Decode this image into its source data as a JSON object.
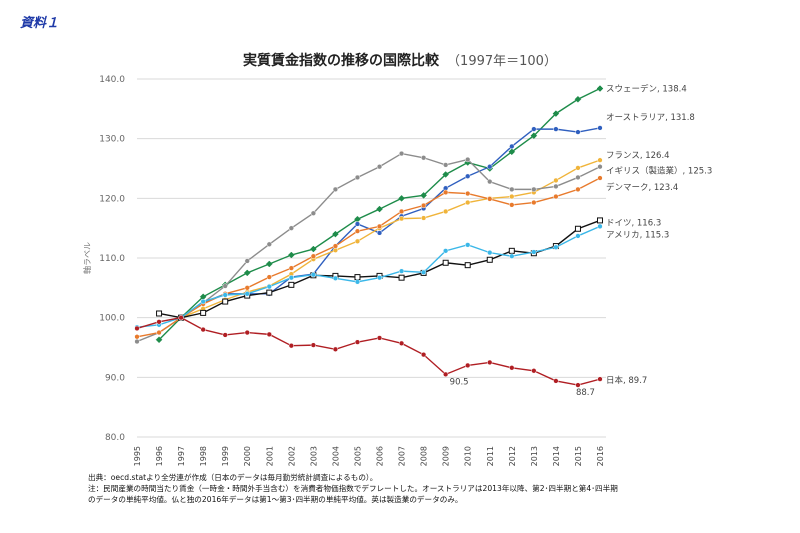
{
  "document_label": "資料１",
  "chart_data": {
    "type": "line",
    "title": "実質賃金指数の推移の国際比較",
    "subtitle": "（1997年＝100）",
    "ylabel": "軸ラベル",
    "xlabel": "",
    "ylim": [
      80,
      140
    ],
    "yticks": [
      "80.0",
      "90.0",
      "100.0",
      "110.0",
      "120.0",
      "130.0",
      "140.0"
    ],
    "ytick_values": [
      80,
      90,
      100,
      110,
      120,
      130,
      140
    ],
    "categories": [
      "1995",
      "1996",
      "1997",
      "1998",
      "1999",
      "2000",
      "2001",
      "2002",
      "2003",
      "2004",
      "2005",
      "2006",
      "2007",
      "2008",
      "2009",
      "2010",
      "2011",
      "2012",
      "2013",
      "2014",
      "2015",
      "2016"
    ],
    "grid": true,
    "legend": "end-of-line labels",
    "series": [
      {
        "name": "スウェーデン",
        "end_label": "スウェーデン, 138.4",
        "color": "#1e8c4a",
        "marker": "diamond",
        "values": [
          null,
          96.3,
          100,
          103.5,
          105.5,
          107.5,
          109,
          110.5,
          111.5,
          114,
          116.5,
          118.2,
          120,
          120.5,
          124,
          126,
          125,
          127.8,
          130.5,
          134.2,
          136.6,
          138.4
        ]
      },
      {
        "name": "オーストラリア",
        "end_label": "オーストラリア, 131.8",
        "color": "#2f5fbf",
        "marker": "circle",
        "values": [
          null,
          null,
          100,
          102.5,
          104,
          104,
          104,
          106.8,
          107.3,
          112,
          115.7,
          114.2,
          117,
          118.3,
          121.7,
          123.7,
          125.3,
          128.7,
          131.6,
          131.6,
          131.1,
          131.8
        ]
      },
      {
        "name": "フランス",
        "end_label": "フランス, 126.4",
        "color": "#f0b43a",
        "marker": "circle",
        "values": [
          null,
          null,
          100,
          101.5,
          103,
          104.3,
          105.3,
          107.3,
          109.8,
          111.3,
          112.8,
          115,
          116.6,
          116.7,
          117.8,
          119.3,
          120,
          120.3,
          121,
          123,
          125.1,
          126.4
        ]
      },
      {
        "name": "イギリス（製造業）",
        "end_label": "イギリス（製造業）, 125.3",
        "color": "#8c8c8c",
        "marker": "circle",
        "values": [
          96,
          97.5,
          100,
          102.5,
          105.3,
          109.5,
          112.3,
          115,
          117.5,
          121.5,
          123.5,
          125.3,
          127.5,
          126.8,
          125.6,
          126.5,
          122.8,
          121.5,
          121.5,
          122,
          123.5,
          125.3
        ]
      },
      {
        "name": "デンマーク",
        "end_label": "デンマーク, 123.4",
        "color": "#e87a2c",
        "marker": "circle",
        "values": [
          96.8,
          97.5,
          100,
          102.3,
          104,
          105,
          106.8,
          108.3,
          110.3,
          112,
          114.5,
          115.3,
          117.8,
          118.8,
          121,
          120.8,
          119.9,
          118.9,
          119.3,
          120.3,
          121.5,
          123.4
        ]
      },
      {
        "name": "ドイツ",
        "end_label": "ドイツ, 116.3",
        "color": "#111111",
        "marker": "square",
        "values": [
          null,
          100.7,
          100,
          100.8,
          102.7,
          103.7,
          104.2,
          105.5,
          107.1,
          107,
          106.8,
          107,
          106.7,
          107.5,
          109.2,
          108.8,
          109.7,
          111.2,
          110.8,
          112,
          114.9,
          116.3
        ]
      },
      {
        "name": "アメリカ",
        "end_label": "アメリカ, 115.3",
        "color": "#3ab7e8",
        "marker": "circle",
        "values": [
          98.4,
          98.8,
          100,
          102.7,
          103.8,
          104,
          105.2,
          106.7,
          107.2,
          106.6,
          106,
          106.7,
          107.8,
          107.6,
          111.2,
          112.2,
          110.9,
          110.3,
          111,
          111.8,
          113.7,
          115.3
        ]
      },
      {
        "name": "日本",
        "end_label": "日本, 89.7",
        "color": "#b01e23",
        "marker": "circle",
        "values": [
          98.2,
          99.3,
          100,
          98,
          97.1,
          97.5,
          97.2,
          95.3,
          95.4,
          94.7,
          95.9,
          96.6,
          95.7,
          93.8,
          90.5,
          92,
          92.5,
          91.6,
          91.1,
          89.4,
          88.7,
          89.7
        ]
      }
    ],
    "annotations": [
      {
        "text": "90.5",
        "x": "2009",
        "y": 90.5
      },
      {
        "text": "88.7",
        "x": "2015",
        "y": 88.7
      }
    ]
  },
  "notes": [
    "出典：oecd.statより全労連が作成（日本のデータは毎月勤労統計調査によるもの）。",
    "注：民間産業の時間当たり賃金（一時金・時間外手当含む）を消費者物価指数でデフレートした。オーストラリアは2013年以降、第2･四半期と第4･四半期",
    "のデータの単純平均値。仏と独の2016年データは第1～第3･四半期の単純平均値。英は製造業のデータのみ。"
  ]
}
